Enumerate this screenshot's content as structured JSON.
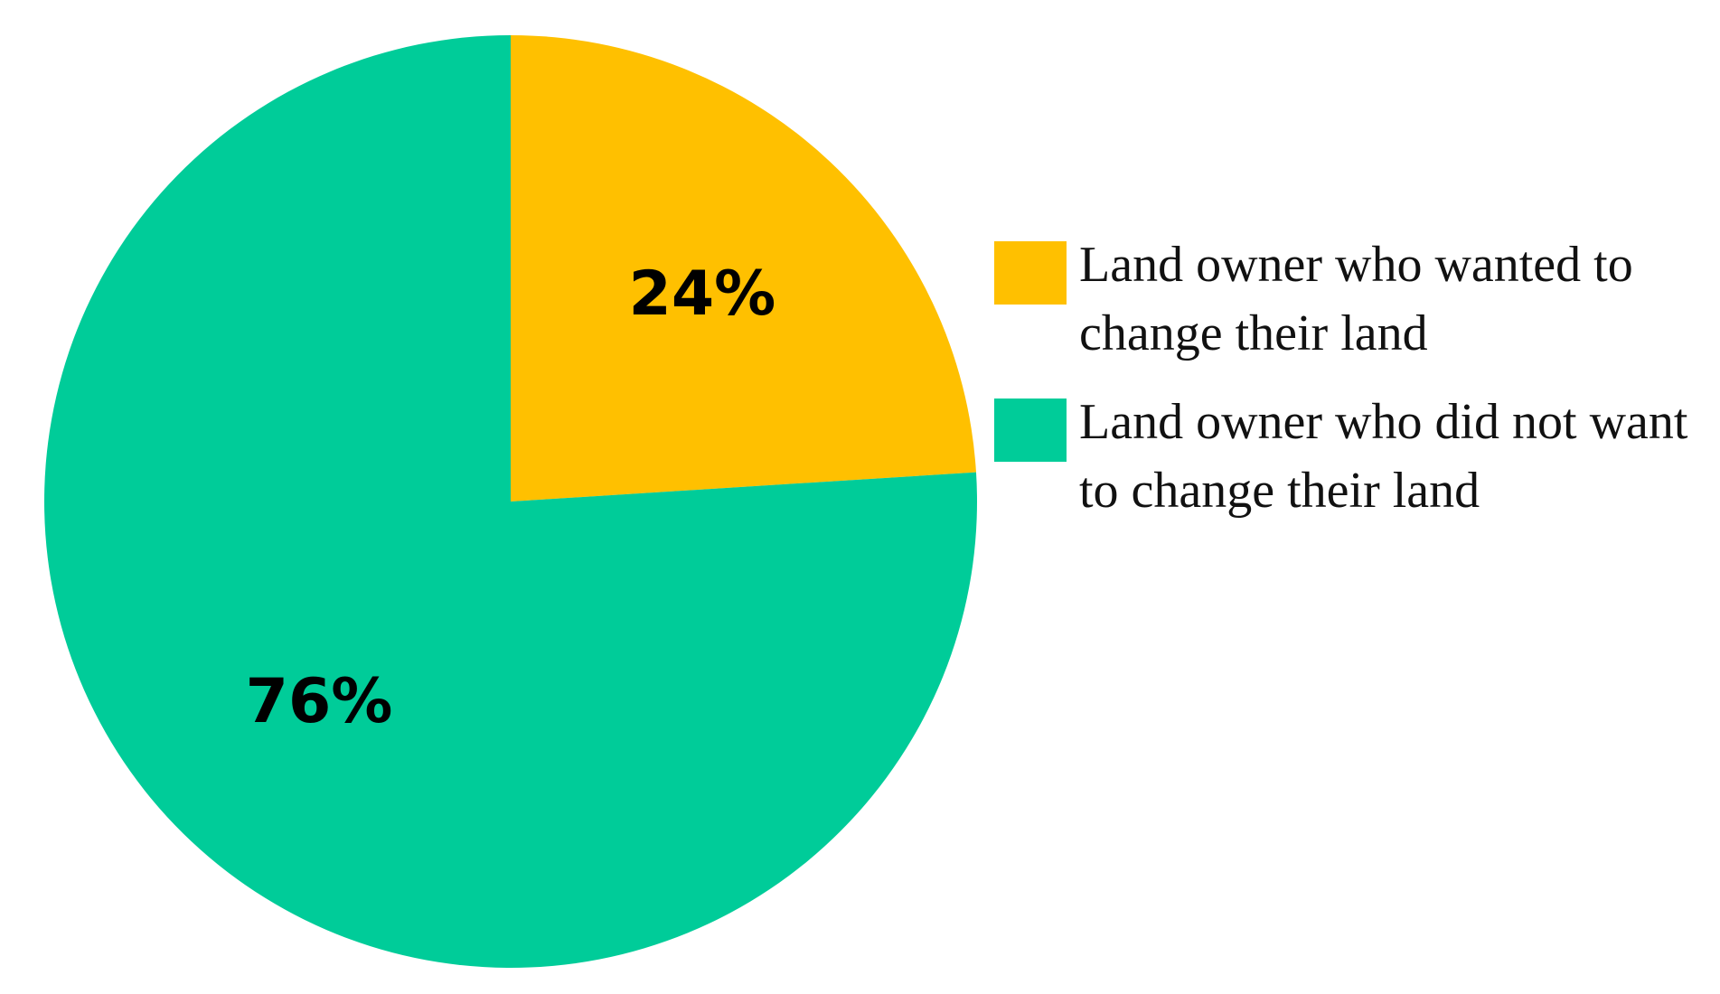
{
  "chart_data": {
    "type": "pie",
    "categories": [
      "Land owner who wanted to change their land",
      "Land owner who did not want to change their land"
    ],
    "values": [
      24,
      76
    ],
    "value_labels": [
      "24%",
      "76%"
    ],
    "colors": [
      "#FFC000",
      "#00CC99"
    ],
    "legend": "right"
  }
}
